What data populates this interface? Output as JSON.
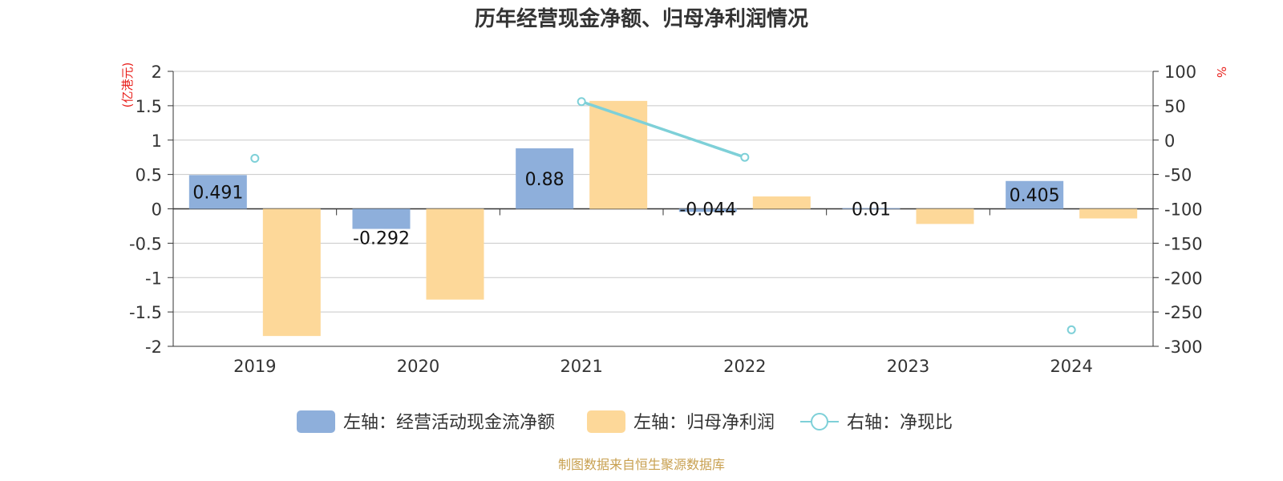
{
  "chart_data": {
    "type": "bar",
    "title": "历年经营现金净额、归母净利润情况",
    "categories": [
      "2019",
      "2020",
      "2021",
      "2022",
      "2023",
      "2024"
    ],
    "series": [
      {
        "name": "左轴：经营活动现金流净额",
        "axis": "left",
        "type": "bar",
        "color": "#8eafdb",
        "values": [
          0.491,
          -0.292,
          0.88,
          -0.044,
          0.01,
          0.405
        ],
        "labels": [
          "0.491",
          "-0.292",
          "0.88",
          "-0.044",
          "0.01",
          "0.405"
        ]
      },
      {
        "name": "左轴：归母净利润",
        "axis": "left",
        "type": "bar",
        "color": "#fdd899",
        "values": [
          -1.85,
          -1.32,
          1.57,
          0.18,
          -0.22,
          -0.14
        ]
      },
      {
        "name": "右轴：净现比",
        "axis": "right",
        "type": "line",
        "color": "#7ed0d8",
        "values": [
          -26.5,
          null,
          56,
          -25,
          null,
          -276
        ]
      }
    ],
    "left_axis": {
      "unit": "(亿港元)",
      "ylim": [
        -2,
        2
      ],
      "ticks": [
        2,
        1.5,
        1,
        0.5,
        0,
        -0.5,
        -1,
        -1.5,
        -2
      ],
      "tick_labels": [
        "2",
        "1.5",
        "1",
        "0.5",
        "0",
        "-0.5",
        "-1",
        "-1.5",
        "-2"
      ]
    },
    "right_axis": {
      "unit": "%",
      "ylim": [
        -300,
        100
      ],
      "ticks": [
        100,
        50,
        0,
        -50,
        -100,
        -150,
        -200,
        -250,
        -300
      ],
      "tick_labels": [
        "100",
        "50",
        "0",
        "-50",
        "-100",
        "-150",
        "-200",
        "-250",
        "-300"
      ]
    },
    "grid": true,
    "legend_position": "bottom"
  },
  "source": "制图数据来自恒生聚源数据库"
}
